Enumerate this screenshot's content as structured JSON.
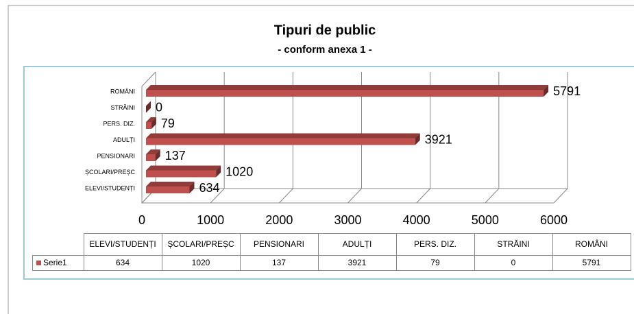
{
  "chart_data": {
    "type": "bar3d_horizontal",
    "title": "Tipuri de public",
    "subtitle": "- conform anexa 1 -",
    "categories": [
      "ELEVI/STUDENȚI",
      "ȘCOLARI/PREȘC",
      "PENSIONARI",
      "ADULȚI",
      "PERS. DIZ.",
      "STRĂINI",
      "ROMÂNI"
    ],
    "series": [
      {
        "name": "Serie1",
        "color": "#c0504d",
        "values": [
          634,
          1020,
          137,
          3921,
          79,
          0,
          5791
        ]
      }
    ],
    "xlim": [
      0,
      6000
    ],
    "xticks": [
      0,
      1000,
      2000,
      3000,
      4000,
      5000,
      6000
    ],
    "grid": true,
    "data_table": true
  }
}
